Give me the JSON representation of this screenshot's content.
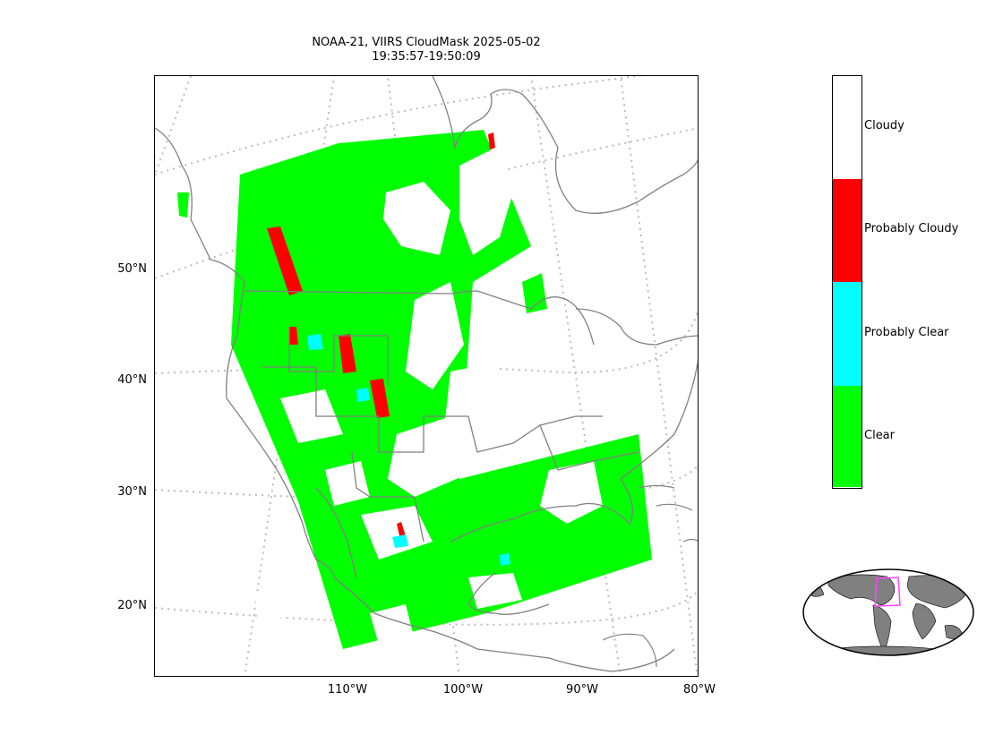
{
  "title": {
    "line1": "NOAA-21, VIIRS CloudMask 2025-05-02",
    "line2": "19:35:57-19:50:09"
  },
  "map": {
    "lat_labels": [
      "50°N",
      "40°N",
      "30°N",
      "20°N"
    ],
    "lon_labels": [
      "110°W",
      "100°W",
      "90°W",
      "80°W"
    ],
    "colors": {
      "clear": "#00ff00",
      "probably_clear": "#00ffff",
      "probably_cloudy": "#ff0000",
      "cloudy": "#ffffff",
      "coast": "#808080",
      "graticule": "#bbbbbb"
    }
  },
  "legend": {
    "entries": [
      {
        "label": "Cloudy",
        "color": "#ffffff"
      },
      {
        "label": "Probably Cloudy",
        "color": "#ff0000"
      },
      {
        "label": "Probably Clear",
        "color": "#00ffff"
      },
      {
        "label": "Clear",
        "color": "#00ff00"
      }
    ]
  },
  "inset": {
    "land_color": "#808080",
    "box_color": "#ff44ff"
  }
}
